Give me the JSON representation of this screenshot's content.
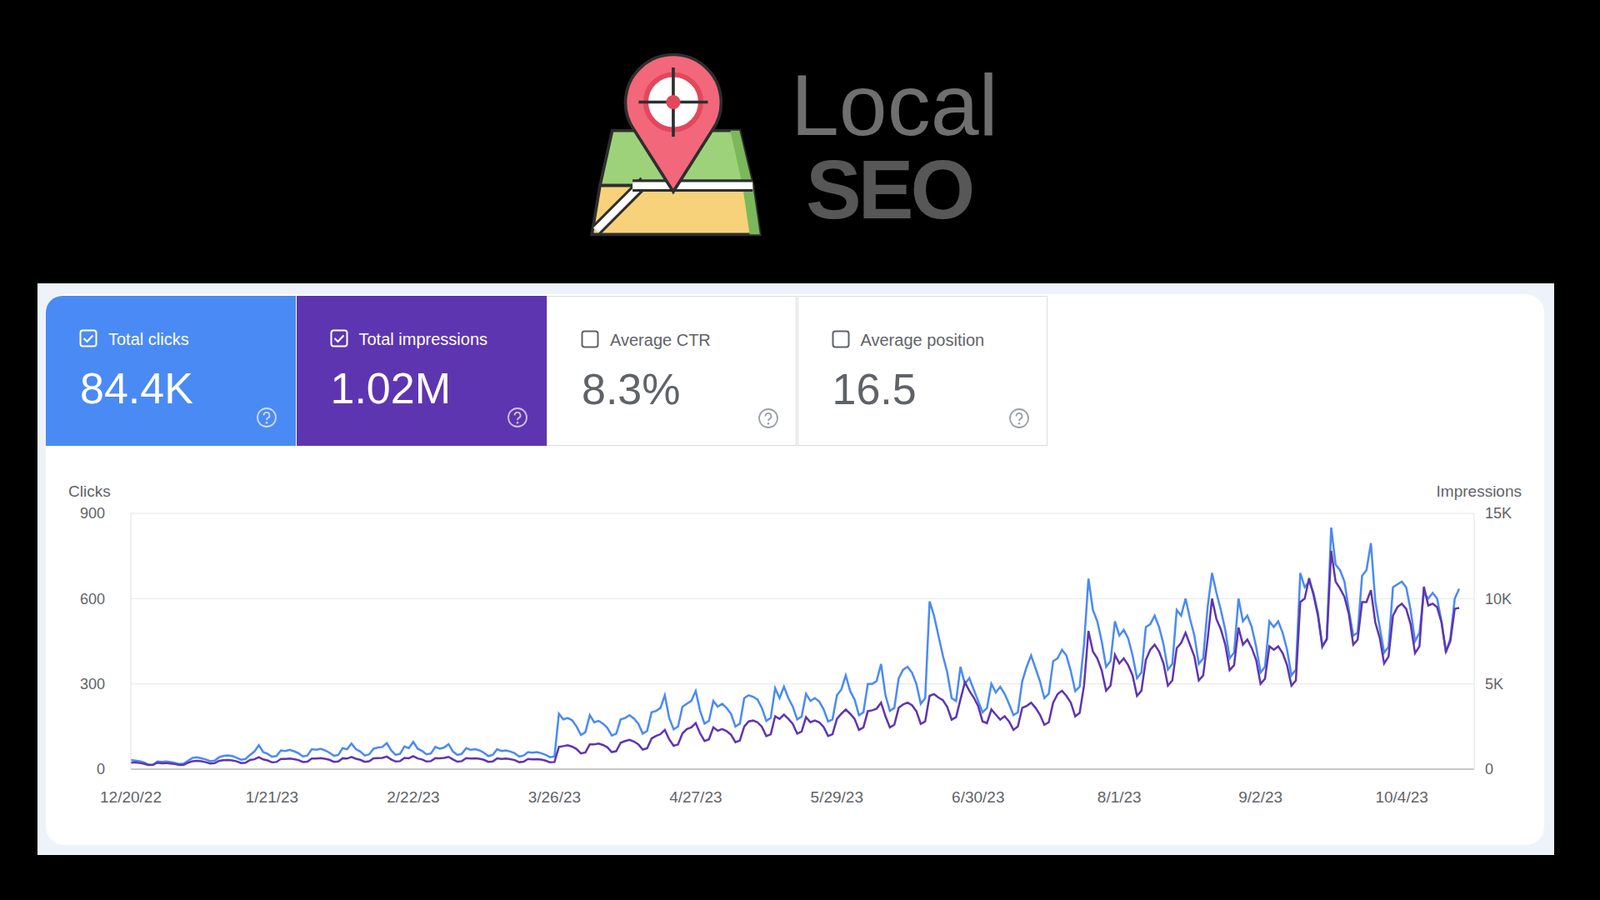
{
  "logo": {
    "title": "Local",
    "subtitle": "SEO"
  },
  "metrics": [
    {
      "label": "Total clicks",
      "value": "84.4K",
      "checked": true
    },
    {
      "label": "Total impressions",
      "value": "1.02M",
      "checked": true
    },
    {
      "label": "Average CTR",
      "value": "8.3%",
      "checked": false
    },
    {
      "label": "Average position",
      "value": "16.5",
      "checked": false
    }
  ],
  "chart_data": {
    "type": "line",
    "categories": [
      "12/20/22",
      null,
      null,
      null,
      null,
      null,
      null,
      null,
      null,
      null,
      null,
      null,
      null,
      null,
      null,
      null,
      null,
      null,
      null,
      null,
      null,
      null,
      null,
      null,
      null,
      null,
      null,
      null,
      null,
      null,
      null,
      null,
      "1/21/23",
      null,
      null,
      null,
      null,
      null,
      null,
      null,
      null,
      null,
      null,
      null,
      null,
      null,
      null,
      null,
      null,
      null,
      null,
      null,
      null,
      null,
      null,
      null,
      null,
      null,
      null,
      null,
      null,
      null,
      null,
      null,
      "2/22/23",
      null,
      null,
      null,
      null,
      null,
      null,
      null,
      null,
      null,
      null,
      null,
      null,
      null,
      null,
      null,
      null,
      null,
      null,
      null,
      null,
      null,
      null,
      null,
      null,
      null,
      null,
      null,
      null,
      null,
      null,
      null,
      "3/26/23",
      null,
      null,
      null,
      null,
      null,
      null,
      null,
      null,
      null,
      null,
      null,
      null,
      null,
      null,
      null,
      null,
      null,
      null,
      null,
      null,
      null,
      null,
      null,
      null,
      null,
      null,
      null,
      null,
      null,
      null,
      null,
      "4/27/23",
      null,
      null,
      null,
      null,
      null,
      null,
      null,
      null,
      null,
      null,
      null,
      null,
      null,
      null,
      null,
      null,
      null,
      null,
      null,
      null,
      null,
      null,
      null,
      null,
      null,
      null,
      null,
      null,
      null,
      null,
      null,
      "5/29/23",
      null,
      null,
      null,
      null,
      null,
      null,
      null,
      null,
      null,
      null,
      null,
      null,
      null,
      null,
      null,
      null,
      null,
      null,
      null,
      null,
      null,
      null,
      null,
      null,
      null,
      null,
      null,
      null,
      null,
      null,
      null,
      "6/30/23",
      null,
      null,
      null,
      null,
      null,
      null,
      null,
      null,
      null,
      null,
      null,
      null,
      null,
      null,
      null,
      null,
      null,
      null,
      null,
      null,
      null,
      null,
      null,
      null,
      null,
      null,
      null,
      null,
      null,
      null,
      null,
      "8/1/23",
      null,
      null,
      null,
      null,
      null,
      null,
      null,
      null,
      null,
      null,
      null,
      null,
      null,
      null,
      null,
      null,
      null,
      null,
      null,
      null,
      null,
      null,
      null,
      null,
      null,
      null,
      null,
      null,
      null,
      null,
      null,
      "9/2/23",
      null,
      null,
      null,
      null,
      null,
      null,
      null,
      null,
      null,
      null,
      null,
      null,
      null,
      null,
      null,
      null,
      null,
      null,
      null,
      null,
      null,
      null,
      null,
      null,
      null,
      null,
      null,
      null,
      null,
      null,
      null,
      "10/4/23",
      null,
      null,
      null,
      null,
      null,
      null,
      null,
      null,
      null,
      null,
      null,
      null,
      null
    ],
    "series": [
      {
        "name": "Clicks",
        "color": "#4a8af4",
        "values": [
          32,
          30,
          28,
          24,
          16,
          15,
          27,
          26,
          27,
          25,
          22,
          18,
          20,
          30,
          40,
          42,
          38,
          34,
          28,
          30,
          42,
          47,
          48,
          46,
          40,
          33,
          36,
          50,
          62,
          84,
          60,
          54,
          44,
          46,
          66,
          64,
          68,
          63,
          56,
          45,
          48,
          70,
          68,
          72,
          66,
          58,
          47,
          50,
          74,
          70,
          90,
          70,
          62,
          48,
          52,
          72,
          76,
          78,
          92,
          66,
          50,
          54,
          80,
          74,
          96,
          72,
          64,
          52,
          55,
          78,
          72,
          76,
          88,
          62,
          50,
          54,
          74,
          68,
          70,
          66,
          58,
          46,
          50,
          70,
          64,
          66,
          62,
          56,
          44,
          48,
          60,
          58,
          60,
          56,
          50,
          42,
          45,
          195,
          175,
          180,
          172,
          150,
          120,
          130,
          190,
          165,
          170,
          160,
          145,
          118,
          125,
          175,
          180,
          190,
          178,
          160,
          125,
          135,
          200,
          205,
          215,
          260,
          180,
          140,
          150,
          220,
          230,
          240,
          275,
          205,
          160,
          170,
          240,
          220,
          230,
          215,
          195,
          150,
          160,
          250,
          260,
          255,
          245,
          215,
          170,
          180,
          285,
          250,
          290,
          250,
          220,
          175,
          185,
          265,
          240,
          250,
          238,
          210,
          168,
          175,
          260,
          280,
          330,
          275,
          245,
          190,
          200,
          300,
          300,
          310,
          370,
          260,
          205,
          215,
          320,
          350,
          360,
          340,
          300,
          230,
          250,
          590,
          540,
          470,
          400,
          340,
          250,
          240,
          360,
          300,
          320,
          280,
          240,
          200,
          215,
          300,
          270,
          290,
          265,
          230,
          190,
          200,
          310,
          360,
          400,
          355,
          310,
          250,
          265,
          380,
          390,
          420,
          400,
          345,
          275,
          290,
          440,
          670,
          560,
          520,
          450,
          360,
          380,
          520,
          470,
          490,
          460,
          400,
          320,
          340,
          500,
          510,
          540,
          500,
          440,
          350,
          370,
          560,
          540,
          600,
          530,
          470,
          370,
          390,
          570,
          690,
          620,
          560,
          490,
          390,
          410,
          600,
          520,
          540,
          500,
          430,
          340,
          360,
          520,
          500,
          520,
          480,
          420,
          330,
          350,
          690,
          640,
          660,
          620,
          550,
          430,
          460,
          850,
          720,
          700,
          660,
          560,
          470,
          480,
          680,
          700,
          795,
          590,
          500,
          410,
          430,
          640,
          650,
          660,
          640,
          560,
          450,
          480,
          620,
          600,
          620,
          600,
          520,
          410,
          460,
          600,
          635
        ]
      },
      {
        "name": "Impressions",
        "color": "#5e35b1",
        "axis": "y2",
        "values": [
          380,
          400,
          360,
          320,
          240,
          250,
          380,
          340,
          360,
          330,
          300,
          240,
          250,
          380,
          470,
          490,
          460,
          410,
          330,
          350,
          490,
          520,
          540,
          510,
          460,
          360,
          380,
          540,
          580,
          700,
          570,
          510,
          400,
          420,
          600,
          600,
          620,
          590,
          530,
          420,
          440,
          620,
          620,
          650,
          610,
          550,
          430,
          450,
          640,
          620,
          720,
          610,
          550,
          430,
          460,
          640,
          650,
          660,
          740,
          570,
          450,
          470,
          660,
          640,
          760,
          630,
          570,
          450,
          470,
          650,
          640,
          660,
          720,
          570,
          440,
          470,
          650,
          620,
          640,
          610,
          550,
          430,
          450,
          630,
          600,
          620,
          590,
          530,
          410,
          440,
          600,
          570,
          590,
          560,
          500,
          400,
          420,
          1300,
          1350,
          1400,
          1320,
          1180,
          920,
          980,
          1450,
          1450,
          1500,
          1420,
          1280,
          1000,
          1060,
          1550,
          1650,
          1720,
          1620,
          1460,
          1150,
          1220,
          1800,
          1950,
          2050,
          2300,
          1750,
          1370,
          1450,
          2100,
          2350,
          2450,
          2700,
          2100,
          1650,
          1750,
          2450,
          2250,
          2350,
          2230,
          2020,
          1580,
          1680,
          2500,
          2800,
          2850,
          2750,
          2480,
          1940,
          2050,
          3100,
          2950,
          3200,
          2950,
          2650,
          2080,
          2200,
          3050,
          2750,
          2850,
          2740,
          2470,
          1950,
          2050,
          2950,
          3250,
          3500,
          3250,
          2950,
          2300,
          2450,
          3400,
          3450,
          3550,
          3900,
          3100,
          2450,
          2600,
          3600,
          3800,
          3900,
          3750,
          3400,
          2650,
          2800,
          4300,
          4400,
          4200,
          4050,
          3650,
          2900,
          3050,
          4100,
          5100,
          4600,
          4200,
          3700,
          2800,
          2700,
          3500,
          3200,
          2900,
          3100,
          2800,
          2300,
          2500,
          3600,
          3700,
          3900,
          3600,
          3200,
          2600,
          2750,
          3900,
          4400,
          4600,
          4300,
          3900,
          3100,
          3300,
          4900,
          8100,
          6900,
          6500,
          5800,
          4600,
          4900,
          6700,
          6200,
          6500,
          6100,
          5500,
          4300,
          4600,
          6400,
          7000,
          7300,
          6900,
          6200,
          4900,
          5200,
          7100,
          7400,
          8000,
          7300,
          6600,
          5200,
          5500,
          7600,
          10000,
          8800,
          8200,
          7300,
          5800,
          6100,
          8300,
          7300,
          7600,
          7100,
          6400,
          5000,
          5300,
          7200,
          7000,
          7200,
          6800,
          6100,
          4900,
          5200,
          9800,
          10000,
          11200,
          10200,
          9000,
          7200,
          7600,
          12800,
          11000,
          10600,
          10100,
          9100,
          7300,
          7600,
          9800,
          9800,
          10500,
          8600,
          7700,
          6200,
          6600,
          9000,
          9500,
          9700,
          9400,
          8500,
          6800,
          7200,
          10700,
          9600,
          9700,
          9500,
          8600,
          6900,
          7500,
          9400,
          9450
        ]
      }
    ],
    "ylim": [
      0,
      900
    ],
    "yticks": [
      0,
      300,
      600,
      900
    ],
    "y2lim": [
      0,
      15000
    ],
    "y2ticks": [
      0,
      {
        "value": 5000,
        "label": "5K"
      },
      {
        "value": 10000,
        "label": "10K"
      },
      {
        "value": 15000,
        "label": "15K"
      }
    ],
    "grid": true
  }
}
